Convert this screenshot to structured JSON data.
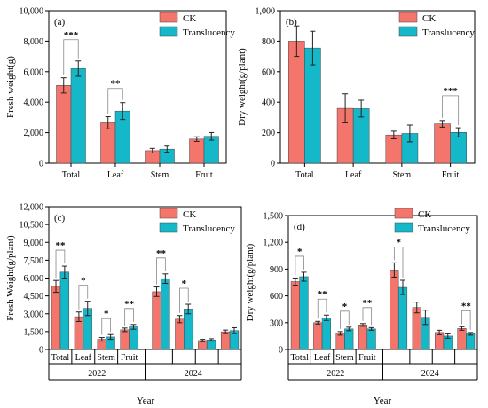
{
  "legend": {
    "ck": "CK",
    "translucency": "Translucency"
  },
  "colors": {
    "ck": "#f4756b",
    "translucency": "#15b8c8"
  },
  "chart_data": [
    {
      "panel": "(a)",
      "type": "bar",
      "categories": [
        "Total",
        "Leaf",
        "Stem",
        "Fruit"
      ],
      "series": [
        {
          "name": "CK",
          "values": [
            5100,
            2650,
            820,
            1580
          ],
          "errors": [
            500,
            400,
            150,
            150
          ]
        },
        {
          "name": "Translucency",
          "values": [
            6200,
            3420,
            920,
            1760
          ],
          "errors": [
            500,
            550,
            200,
            250
          ]
        }
      ],
      "ylabel": "Fresh weight(g)",
      "xlabel": "",
      "ylim": [
        0,
        10000
      ],
      "yticks": [
        0,
        2000,
        4000,
        6000,
        8000,
        10000
      ],
      "ytick_labels": [
        "0",
        "2,000",
        "4,000",
        "6,000",
        "8,000",
        "10,000"
      ],
      "significance": [
        {
          "category": 0,
          "text": "***"
        },
        {
          "category": 1,
          "text": "**"
        }
      ],
      "legend_position": "top-right"
    },
    {
      "panel": "(b)",
      "type": "bar",
      "categories": [
        "Total",
        "Leaf",
        "Stem",
        "Fruit"
      ],
      "series": [
        {
          "name": "CK",
          "values": [
            800,
            360,
            185,
            258
          ],
          "errors": [
            100,
            95,
            25,
            22
          ]
        },
        {
          "name": "Translucency",
          "values": [
            755,
            358,
            195,
            202
          ],
          "errors": [
            110,
            55,
            55,
            30
          ]
        }
      ],
      "ylabel": "Dry weight(g/plant)",
      "xlabel": "",
      "ylim": [
        0,
        1000
      ],
      "yticks": [
        0,
        200,
        400,
        600,
        800,
        1000
      ],
      "ytick_labels": [
        "0",
        "200",
        "400",
        "600",
        "800",
        "1,000"
      ],
      "significance": [
        {
          "category": 3,
          "text": "***"
        }
      ],
      "legend_position": "top-right"
    },
    {
      "panel": "(c)",
      "type": "bar",
      "categories": [
        "Total",
        "Leaf",
        "Stem",
        "Fruit",
        "Total",
        "Leaf",
        "Stem",
        "Fruit"
      ],
      "tick_categories": [
        "Total",
        "Leaf",
        "Stem",
        "Fruit",
        "",
        "",
        "",
        ""
      ],
      "groups": [
        "2022",
        "2024"
      ],
      "series": [
        {
          "name": "CK",
          "values": [
            5300,
            2750,
            850,
            1650,
            4850,
            2550,
            750,
            1480
          ],
          "errors": [
            500,
            400,
            150,
            150,
            400,
            300,
            100,
            150
          ]
        },
        {
          "name": "Translucency",
          "values": [
            6500,
            3450,
            1050,
            1900,
            5950,
            3400,
            800,
            1580
          ],
          "errors": [
            500,
            600,
            200,
            200,
            400,
            400,
            100,
            250
          ]
        }
      ],
      "ylabel": "Fresh Weight(g/plant)",
      "xlabel": "Year",
      "ylim": [
        0,
        12000
      ],
      "yticks": [
        0,
        1500,
        3000,
        4500,
        6000,
        7500,
        9000,
        10500,
        12000
      ],
      "ytick_labels": [
        "0",
        "1,500",
        "3,000",
        "4,500",
        "6,000",
        "7,500",
        "9,000",
        "10,500",
        "12,000"
      ],
      "significance": [
        {
          "category": 0,
          "text": "**"
        },
        {
          "category": 1,
          "text": "*"
        },
        {
          "category": 2,
          "text": "*"
        },
        {
          "category": 3,
          "text": "**"
        },
        {
          "category": 4,
          "text": "**"
        },
        {
          "category": 5,
          "text": "*"
        }
      ],
      "legend_position": "top-right"
    },
    {
      "panel": "(d)",
      "type": "bar",
      "categories": [
        "Total",
        "Leaf",
        "Stem",
        "Fruit",
        "Total",
        "Leaf",
        "Stem",
        "Fruit"
      ],
      "tick_categories": [
        "Total",
        "Leaf",
        "Stem",
        "Fruit",
        "",
        "",
        "",
        ""
      ],
      "groups": [
        "2022",
        "2024"
      ],
      "series": [
        {
          "name": "CK",
          "values": [
            760,
            300,
            180,
            275,
            890,
            470,
            190,
            235
          ],
          "errors": [
            40,
            15,
            20,
            15,
            80,
            60,
            25,
            20
          ]
        },
        {
          "name": "Translucency",
          "values": [
            815,
            355,
            230,
            230,
            695,
            360,
            150,
            175
          ],
          "errors": [
            50,
            30,
            20,
            15,
            80,
            80,
            25,
            15
          ]
        }
      ],
      "ylabel": "Dry weight(g/plant)",
      "xlabel": "Year",
      "ylim": [
        0,
        1500
      ],
      "yticks": [
        0,
        300,
        600,
        900,
        1200,
        1500
      ],
      "ytick_labels": [
        "0",
        "300",
        "600",
        "900",
        "1,200",
        "1,500"
      ],
      "significance": [
        {
          "category": 0,
          "text": "*"
        },
        {
          "category": 1,
          "text": "**"
        },
        {
          "category": 2,
          "text": "*"
        },
        {
          "category": 3,
          "text": "**"
        },
        {
          "category": 4,
          "text": "*"
        },
        {
          "category": 7,
          "text": "**"
        }
      ],
      "legend_position": "top-right"
    }
  ]
}
